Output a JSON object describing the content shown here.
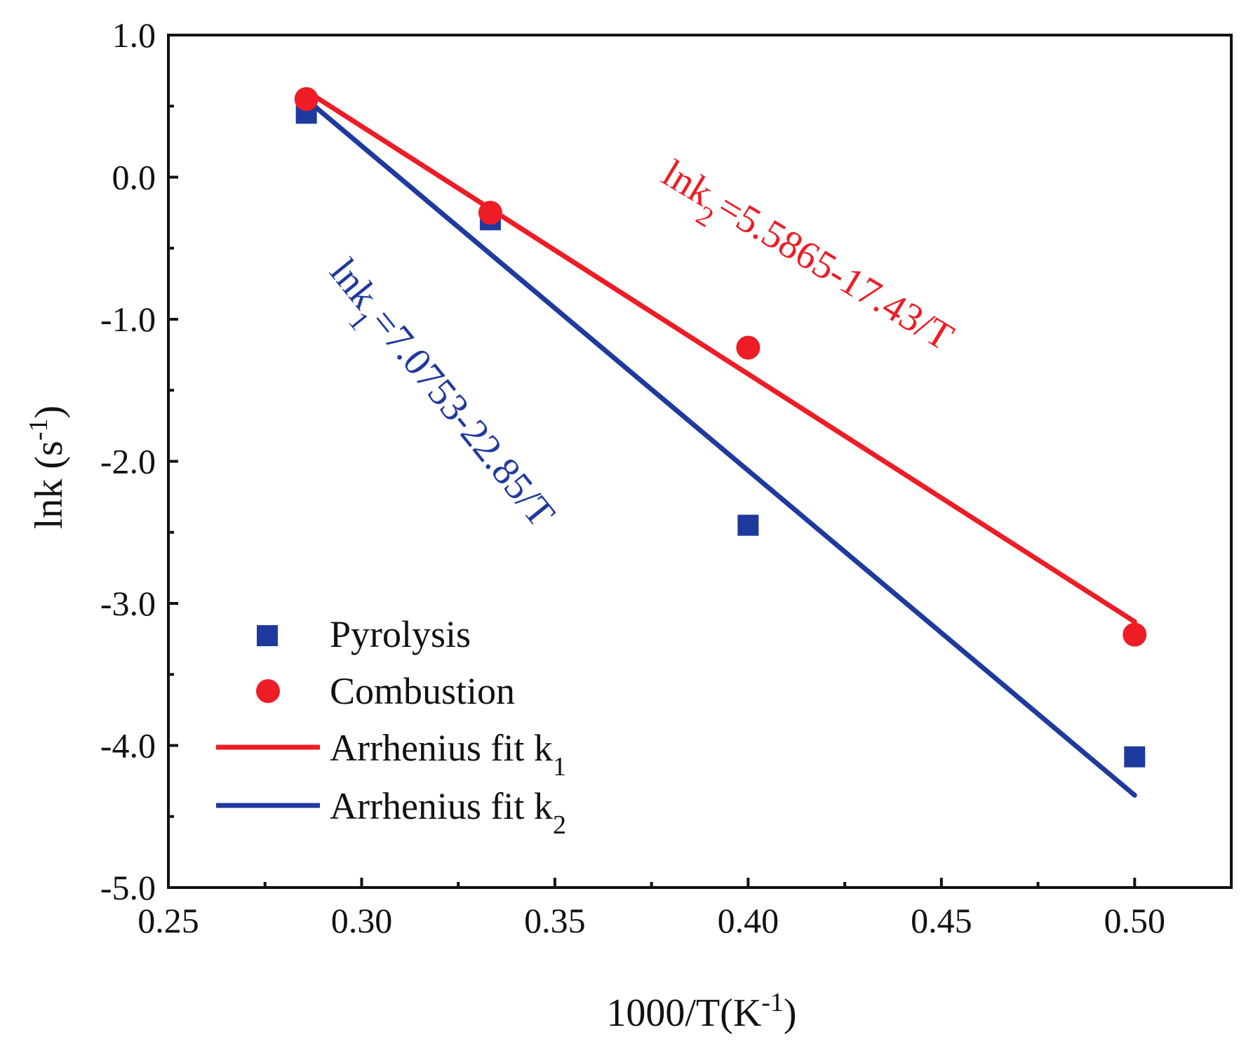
{
  "chart_data": {
    "type": "scatter",
    "title": "",
    "xlabel": {
      "main": "1000/T(K",
      "sup": "-1",
      "close": ")"
    },
    "ylabel": {
      "main": "lnk (s",
      "sup": "-1",
      "close": ")"
    },
    "xlim": [
      0.25,
      0.525
    ],
    "ylim": [
      -5.0,
      1.0
    ],
    "xticks": [
      {
        "value": 0.25,
        "label": "0.25"
      },
      {
        "value": 0.3,
        "label": "0.30"
      },
      {
        "value": 0.35,
        "label": "0.35"
      },
      {
        "value": 0.4,
        "label": "0.40"
      },
      {
        "value": 0.45,
        "label": "0.45"
      },
      {
        "value": 0.5,
        "label": "0.50"
      }
    ],
    "yticks": [
      {
        "value": 1.0,
        "label": "1.0"
      },
      {
        "value": 0.0,
        "label": "0.0"
      },
      {
        "value": -1.0,
        "label": "-1.0"
      },
      {
        "value": -2.0,
        "label": "-2.0"
      },
      {
        "value": -3.0,
        "label": "-3.0"
      },
      {
        "value": -4.0,
        "label": "-4.0"
      },
      {
        "value": -5.0,
        "label": "-5.0"
      }
    ],
    "series": [
      {
        "name": "Pyrolysis",
        "kind": "points",
        "marker": "square",
        "color": "#1f3a9e",
        "x": [
          0.2857,
          0.3333,
          0.4,
          0.5
        ],
        "y": [
          0.45,
          -0.3,
          -2.45,
          -4.08
        ]
      },
      {
        "name": "Combustion",
        "kind": "points",
        "marker": "circle",
        "color": "#ee1c25",
        "x": [
          0.2857,
          0.3333,
          0.4,
          0.5
        ],
        "y": [
          0.55,
          -0.25,
          -1.2,
          -3.22
        ]
      },
      {
        "name": "Arrhenius fit k",
        "sub": "1",
        "kind": "line",
        "color": "#ee1c25",
        "x": [
          0.2857,
          0.5
        ],
        "y": [
          0.607,
          -3.129
        ]
      },
      {
        "name": "Arrhenius fit k",
        "sub": "2",
        "kind": "line",
        "color": "#1f3a9e",
        "x": [
          0.2857,
          0.5
        ],
        "y": [
          0.547,
          -4.35
        ]
      }
    ],
    "legend": {
      "position": "lower-left"
    },
    "annotations": [
      {
        "id": "eq-k2",
        "color": "#ee1c25",
        "prefix": "lnk",
        "sub": "2",
        "rest": "=5.5865-17.43/T"
      },
      {
        "id": "eq-k1",
        "color": "#1f3a9e",
        "prefix": "lnk",
        "sub": "1",
        "rest": "=7.0753-22.85/T"
      }
    ],
    "grid": false
  }
}
